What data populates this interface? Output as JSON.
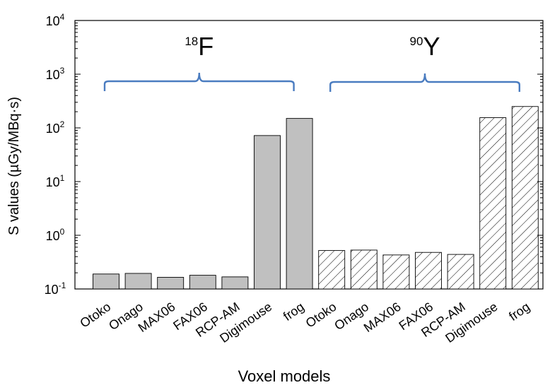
{
  "chart_data": {
    "type": "bar",
    "xlabel": "Voxel models",
    "ylabel": "S values (µGy/MBq·s)",
    "yscale": "log",
    "ylim": [
      0.1,
      10000
    ],
    "yticks": [
      {
        "base": "10",
        "exp": "-1"
      },
      {
        "base": "10",
        "exp": "0"
      },
      {
        "base": "10",
        "exp": "1"
      },
      {
        "base": "10",
        "exp": "2"
      },
      {
        "base": "10",
        "exp": "3"
      },
      {
        "base": "10",
        "exp": "4"
      }
    ],
    "grid": false,
    "groups": [
      {
        "label_sup": "18",
        "label_main": "F",
        "fill": "#c0c0c0",
        "pattern": "solid",
        "categories": [
          "Otoko",
          "Onago",
          "MAX06",
          "FAX06",
          "RCP-AM",
          "Digimouse",
          "frog"
        ],
        "values": [
          0.19,
          0.195,
          0.165,
          0.18,
          0.168,
          72,
          150
        ]
      },
      {
        "label_sup": "90",
        "label_main": "Y",
        "fill": "#ffffff",
        "pattern": "hatch",
        "categories": [
          "Otoko",
          "Onago",
          "MAX06",
          "FAX06",
          "RCP-AM",
          "Digimouse",
          "frog"
        ],
        "values": [
          0.52,
          0.53,
          0.43,
          0.48,
          0.44,
          155,
          250
        ]
      }
    ],
    "bracket_color": "#4a7cc0"
  }
}
